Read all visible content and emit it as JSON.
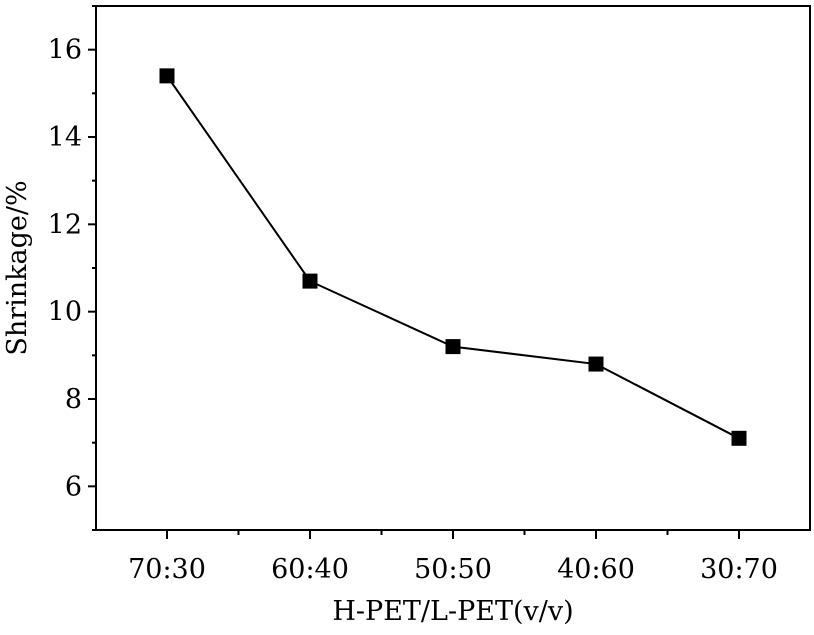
{
  "chart_data": {
    "type": "line",
    "title": "",
    "xlabel": "H-PET/L-PET(v/v)",
    "ylabel": "Shrinkage/%",
    "categories": [
      "70:30",
      "60:40",
      "50:50",
      "40:60",
      "30:70"
    ],
    "series": [
      {
        "values": [
          15.4,
          10.7,
          9.2,
          8.8,
          7.1
        ],
        "color": "#000000",
        "marker": "square"
      }
    ],
    "ylim": [
      5,
      17
    ],
    "yticks": [
      6,
      8,
      10,
      12,
      14,
      16
    ],
    "yticklabels": [
      "6",
      "8",
      "10",
      "12",
      "14",
      "16"
    ],
    "grid": false,
    "legend": "none"
  }
}
